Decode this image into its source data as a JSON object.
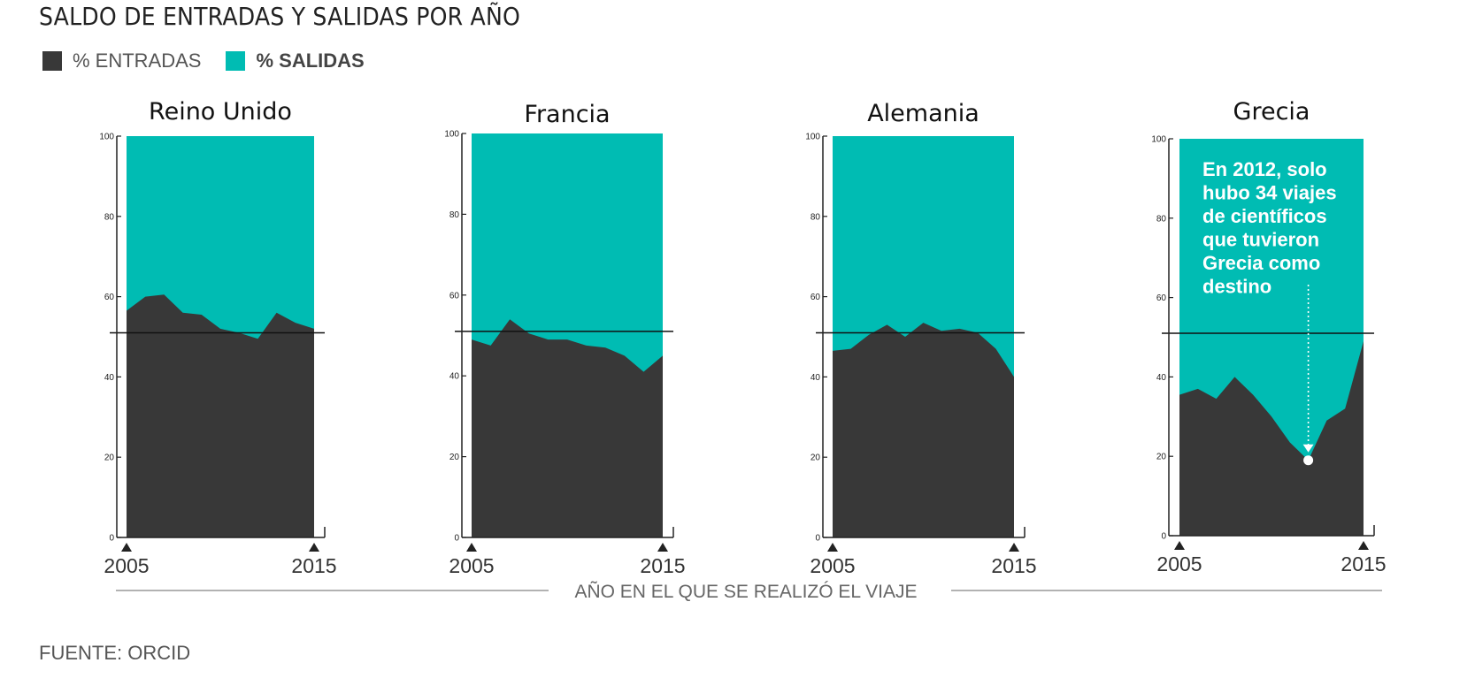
{
  "title": "SALDO DE ENTRADAS Y SALIDAS POR AÑO",
  "legend": [
    {
      "label": "% ENTRADAS",
      "color": "#383838"
    },
    {
      "label": "% SALIDAS",
      "color": "#00bcb3"
    }
  ],
  "x_axis_label": "AÑO EN EL QUE SE REALIZÓ EL VIAJE",
  "source": "FUENTE: ORCID",
  "colors": {
    "entradas": "#383838",
    "salidas": "#00bcb3",
    "axis": "#222222",
    "rule": "#999999",
    "annotation": "#ffffff"
  },
  "chart_data": [
    {
      "type": "area",
      "title": "Reino Unido",
      "x": [
        2005,
        2006,
        2007,
        2008,
        2009,
        2010,
        2011,
        2012,
        2013,
        2014,
        2015
      ],
      "x_tick_labels": [
        "2005",
        "2015"
      ],
      "y_ticks": [
        "0",
        "20",
        "40",
        "60",
        "80",
        "100"
      ],
      "ylim": [
        0,
        100
      ],
      "reference_line": 51,
      "series": [
        {
          "name": "% ENTRADAS",
          "values": [
            56.5,
            60,
            60.5,
            56,
            55.5,
            52,
            51,
            49.5,
            56,
            53.5,
            52
          ]
        },
        {
          "name": "% SALIDAS",
          "values": [
            43.5,
            40,
            39.5,
            44,
            44.5,
            48,
            49,
            50.5,
            44,
            46.5,
            48
          ]
        }
      ]
    },
    {
      "type": "area",
      "title": "Francia",
      "x": [
        2005,
        2006,
        2007,
        2008,
        2009,
        2010,
        2011,
        2012,
        2013,
        2014,
        2015
      ],
      "x_tick_labels": [
        "2005",
        "2015"
      ],
      "y_ticks": [
        "0",
        "20",
        "40",
        "60",
        "80",
        "100"
      ],
      "ylim": [
        0,
        100
      ],
      "reference_line": 51,
      "series": [
        {
          "name": "% ENTRADAS",
          "values": [
            49,
            47.5,
            54,
            50.5,
            49,
            49,
            47.5,
            47,
            45,
            41,
            45
          ]
        },
        {
          "name": "% SALIDAS",
          "values": [
            51,
            52.5,
            46,
            49.5,
            51,
            51,
            52.5,
            53,
            55,
            59,
            55
          ]
        }
      ]
    },
    {
      "type": "area",
      "title": "Alemania",
      "x": [
        2005,
        2006,
        2007,
        2008,
        2009,
        2010,
        2011,
        2012,
        2013,
        2014,
        2015
      ],
      "x_tick_labels": [
        "2005",
        "2015"
      ],
      "y_ticks": [
        "0",
        "20",
        "40",
        "60",
        "80",
        "100"
      ],
      "ylim": [
        0,
        100
      ],
      "reference_line": 51,
      "series": [
        {
          "name": "% ENTRADAS",
          "values": [
            46.5,
            47,
            50.5,
            53,
            50,
            53.5,
            51.5,
            52,
            51,
            47,
            40
          ]
        },
        {
          "name": "% SALIDAS",
          "values": [
            53.5,
            53,
            49.5,
            47,
            50,
            46.5,
            48.5,
            48,
            49,
            53,
            60
          ]
        }
      ]
    },
    {
      "type": "area",
      "title": "Grecia",
      "x": [
        2005,
        2006,
        2007,
        2008,
        2009,
        2010,
        2011,
        2012,
        2013,
        2014,
        2015
      ],
      "x_tick_labels": [
        "2005",
        "2015"
      ],
      "y_ticks": [
        "0",
        "20",
        "40",
        "60",
        "80",
        "100"
      ],
      "ylim": [
        0,
        100
      ],
      "reference_line": 51,
      "series": [
        {
          "name": "% ENTRADAS",
          "values": [
            35.5,
            37,
            34.5,
            40,
            35.5,
            30,
            23.5,
            19,
            29,
            32,
            49
          ]
        },
        {
          "name": "% SALIDAS",
          "values": [
            64.5,
            63,
            65.5,
            60,
            64.5,
            70,
            76.5,
            81,
            71,
            68,
            51
          ]
        }
      ],
      "annotation": {
        "text_lines": [
          "En 2012, solo",
          "hubo 34 viajes",
          "de científicos",
          "que tuvieron",
          "Grecia como",
          "destino"
        ],
        "x": 2012,
        "y": 19
      }
    }
  ]
}
